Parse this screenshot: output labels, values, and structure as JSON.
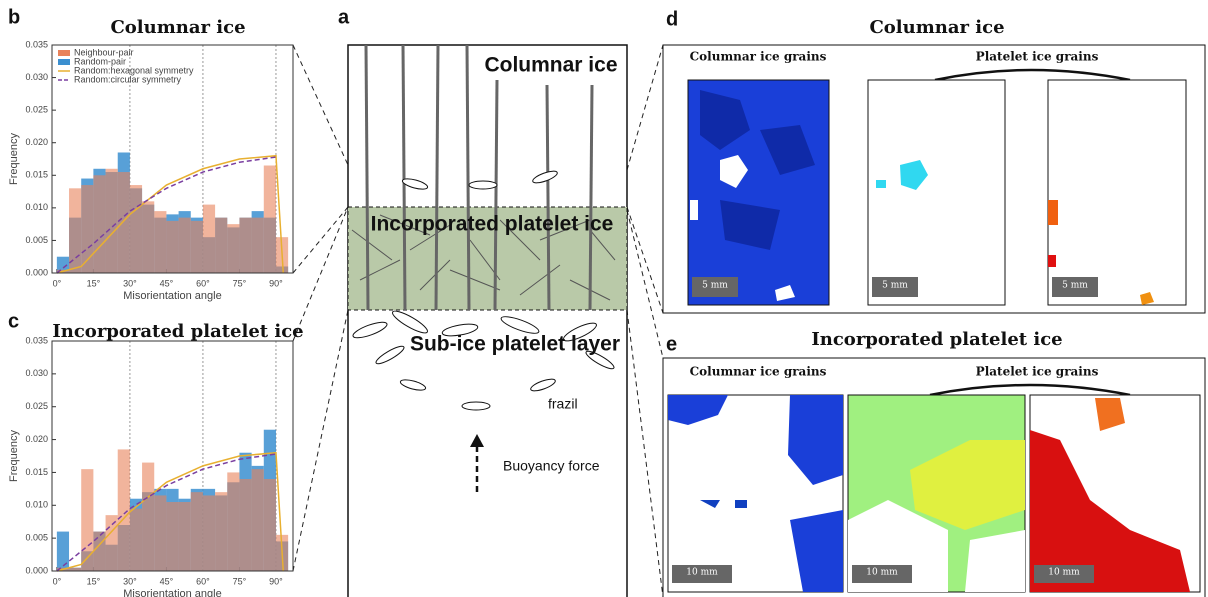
{
  "chart_data": [
    {
      "type": "histogram",
      "panel": "b",
      "title": "Columnar ice",
      "xlabel": "Misorientation angle",
      "ylabel": "Frequency",
      "bins": [
        0,
        5,
        10,
        15,
        20,
        25,
        30,
        35,
        40,
        45,
        50,
        55,
        60,
        65,
        70,
        75,
        80,
        85,
        90,
        95
      ],
      "series": [
        {
          "name": "Neighbour-pair",
          "color": "#e8825a",
          "values": [
            0.0005,
            0.013,
            0.0135,
            0.015,
            0.016,
            0.0155,
            0.0135,
            0.011,
            0.0095,
            0.008,
            0.0085,
            0.008,
            0.0105,
            0.0085,
            0.0075,
            0.0085,
            0.0085,
            0.0165,
            0.0055
          ]
        },
        {
          "name": "Random-pair",
          "color": "#3b8fd0",
          "values": [
            0.0025,
            0.0085,
            0.0145,
            0.016,
            0.0155,
            0.0185,
            0.013,
            0.0105,
            0.0085,
            0.009,
            0.0095,
            0.0085,
            0.0055,
            0.0085,
            0.007,
            0.0085,
            0.0095,
            0.0085,
            0.001
          ]
        }
      ],
      "curves": [
        {
          "name": "Random:hexagonal symmetry",
          "color": "#e8b030",
          "dash": false,
          "x": [
            0,
            10,
            20,
            30,
            45,
            60,
            75,
            90,
            93
          ],
          "values": [
            0,
            0.001,
            0.005,
            0.009,
            0.0135,
            0.016,
            0.0175,
            0.018,
            0
          ]
        },
        {
          "name": "Random:circular symmetry",
          "color": "#7a3fa0",
          "dash": true,
          "x": [
            0,
            15,
            30,
            45,
            60,
            75,
            90
          ],
          "values": [
            0,
            0.0045,
            0.0095,
            0.013,
            0.0155,
            0.017,
            0.0178
          ]
        }
      ],
      "xlim": [
        -2,
        97
      ],
      "ylim": [
        0,
        0.035
      ],
      "xticks": [
        {
          "value": 0,
          "label": "0°"
        },
        {
          "value": 15,
          "label": "15°"
        },
        {
          "value": 30,
          "label": "30°"
        },
        {
          "value": 45,
          "label": "45°"
        },
        {
          "value": 60,
          "label": "60°"
        },
        {
          "value": 75,
          "label": "75°"
        },
        {
          "value": 90,
          "label": "90°"
        }
      ],
      "yticks": [
        {
          "value": 0,
          "label": "0.000"
        },
        {
          "value": 0.005,
          "label": "0.005"
        },
        {
          "value": 0.01,
          "label": "0.010"
        },
        {
          "value": 0.015,
          "label": "0.015"
        },
        {
          "value": 0.02,
          "label": "0.020"
        },
        {
          "value": 0.025,
          "label": "0.025"
        },
        {
          "value": 0.03,
          "label": "0.030"
        },
        {
          "value": 0.035,
          "label": "0.035"
        }
      ],
      "grid": true,
      "legend": "upper left"
    },
    {
      "type": "histogram",
      "panel": "c",
      "title": "Incorporated platelet ice",
      "xlabel": "Misorientation angle",
      "ylabel": "Frequency",
      "bins": [
        0,
        5,
        10,
        15,
        20,
        25,
        30,
        35,
        40,
        45,
        50,
        55,
        60,
        65,
        70,
        75,
        80,
        85,
        90,
        95
      ],
      "series": [
        {
          "name": "Neighbour-pair",
          "color": "#e8825a",
          "values": [
            0.0005,
            0.0005,
            0.0155,
            0.006,
            0.0085,
            0.0185,
            0.0095,
            0.0165,
            0.0115,
            0.0105,
            0.0105,
            0.012,
            0.0115,
            0.012,
            0.015,
            0.014,
            0.0155,
            0.014,
            0.0055
          ]
        },
        {
          "name": "Random-pair",
          "color": "#3b8fd0",
          "values": [
            0.006,
            0.0005,
            0.003,
            0.006,
            0.004,
            0.007,
            0.011,
            0.012,
            0.0125,
            0.0125,
            0.011,
            0.0125,
            0.0125,
            0.0115,
            0.0135,
            0.018,
            0.016,
            0.0215,
            0.0045
          ]
        }
      ],
      "curves": [
        {
          "name": "Random:hexagonal symmetry",
          "color": "#e8b030",
          "dash": false,
          "x": [
            0,
            10,
            20,
            30,
            45,
            60,
            75,
            90,
            93
          ],
          "values": [
            0,
            0.001,
            0.005,
            0.009,
            0.0135,
            0.016,
            0.0175,
            0.018,
            0
          ]
        },
        {
          "name": "Random:circular symmetry",
          "color": "#7a3fa0",
          "dash": true,
          "x": [
            0,
            15,
            30,
            45,
            60,
            75,
            90
          ],
          "values": [
            0,
            0.0045,
            0.0095,
            0.013,
            0.0155,
            0.017,
            0.0178
          ]
        }
      ],
      "xlim": [
        -2,
        97
      ],
      "ylim": [
        0,
        0.035
      ],
      "xticks": [
        {
          "value": 0,
          "label": "0°"
        },
        {
          "value": 15,
          "label": "15°"
        },
        {
          "value": 30,
          "label": "30°"
        },
        {
          "value": 45,
          "label": "45°"
        },
        {
          "value": 60,
          "label": "60°"
        },
        {
          "value": 75,
          "label": "75°"
        },
        {
          "value": 90,
          "label": "90°"
        }
      ],
      "yticks": [
        {
          "value": 0,
          "label": "0.000"
        },
        {
          "value": 0.005,
          "label": "0.005"
        },
        {
          "value": 0.01,
          "label": "0.010"
        },
        {
          "value": 0.015,
          "label": "0.015"
        },
        {
          "value": 0.02,
          "label": "0.020"
        },
        {
          "value": 0.025,
          "label": "0.025"
        },
        {
          "value": 0.03,
          "label": "0.030"
        },
        {
          "value": 0.035,
          "label": "0.035"
        }
      ],
      "grid": true
    }
  ],
  "diagram": {
    "panel": "a",
    "layers": [
      "Columnar ice",
      "Incorporated platelet ice",
      "Sub-ice platelet layer"
    ],
    "frazil": "frazil",
    "force": "Buoyancy force"
  },
  "panel_d": {
    "panel": "d",
    "title": "Columnar ice",
    "columnar": "Columnar ice grains",
    "platelet": "Platelet ice grains",
    "scales": [
      "5 mm",
      "5 mm",
      "5 mm"
    ]
  },
  "panel_e": {
    "panel": "e",
    "title": "Incorporated platelet ice",
    "columnar": "Columnar ice grains",
    "platelet": "Platelet ice grains",
    "scales": [
      "10 mm",
      "10 mm",
      "10 mm"
    ]
  }
}
